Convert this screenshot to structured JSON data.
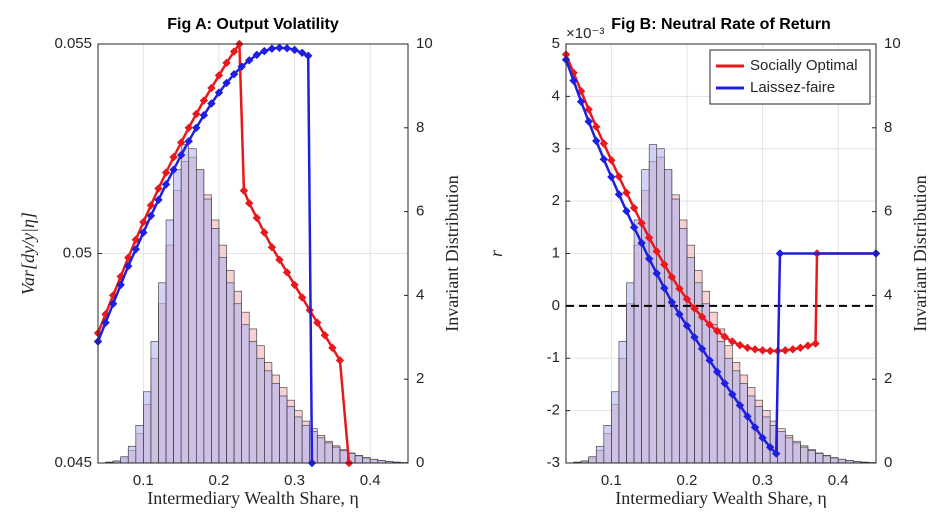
{
  "chart_data": [
    {
      "type": "line_histogram",
      "title": "Fig A: Output Volatility",
      "xlabel": "Intermediary Wealth Share, η",
      "ylabel": "Var[dy/y|η]",
      "y2label": "Invariant Distribution",
      "xlim": [
        0.04,
        0.45
      ],
      "xticks": [
        0.1,
        0.2,
        0.3,
        0.4
      ],
      "ylim": [
        0.045,
        0.055
      ],
      "yticks": [
        0.045,
        0.05,
        0.055
      ],
      "y2lim": [
        0,
        10
      ],
      "y2ticks": [
        0,
        2,
        4,
        6,
        8,
        10
      ],
      "grid": true,
      "histograms": [
        {
          "color": "#f0b4b4",
          "axis": "y2",
          "bins": [
            0.05,
            0.06,
            0.07,
            0.08,
            0.09,
            0.1,
            0.11,
            0.12,
            0.13,
            0.14,
            0.15,
            0.16,
            0.17,
            0.18,
            0.19,
            0.2,
            0.21,
            0.22,
            0.23,
            0.24,
            0.25,
            0.26,
            0.27,
            0.28,
            0.29,
            0.3,
            0.31,
            0.32,
            0.33,
            0.34,
            0.35,
            0.36,
            0.37,
            0.38,
            0.39,
            0.4,
            0.41,
            0.42,
            0.43,
            0.44,
            0.45
          ],
          "counts": [
            0.02,
            0.04,
            0.12,
            0.3,
            0.7,
            1.4,
            2.5,
            3.8,
            5.2,
            6.5,
            7.2,
            7.3,
            7.0,
            6.4,
            5.8,
            5.2,
            4.6,
            4.1,
            3.6,
            3.2,
            2.8,
            2.4,
            2.1,
            1.8,
            1.5,
            1.25,
            1.0,
            0.82,
            0.66,
            0.52,
            0.41,
            0.32,
            0.24,
            0.18,
            0.13,
            0.09,
            0.06,
            0.04,
            0.02,
            0.01
          ]
        },
        {
          "color": "#b4b4f0",
          "axis": "y2",
          "bins": [
            0.05,
            0.06,
            0.07,
            0.08,
            0.09,
            0.1,
            0.11,
            0.12,
            0.13,
            0.14,
            0.15,
            0.16,
            0.17,
            0.18,
            0.19,
            0.2,
            0.21,
            0.22,
            0.23,
            0.24,
            0.25,
            0.26,
            0.27,
            0.28,
            0.29,
            0.3,
            0.31,
            0.32,
            0.33,
            0.34,
            0.35,
            0.36,
            0.37,
            0.38,
            0.39,
            0.4,
            0.41,
            0.42,
            0.43,
            0.44,
            0.45
          ],
          "counts": [
            0.02,
            0.05,
            0.15,
            0.4,
            0.9,
            1.7,
            2.9,
            4.3,
            5.8,
            7.0,
            7.6,
            7.5,
            7.0,
            6.3,
            5.6,
            4.9,
            4.3,
            3.8,
            3.3,
            2.9,
            2.5,
            2.2,
            1.9,
            1.6,
            1.35,
            1.1,
            0.9,
            0.75,
            0.6,
            0.48,
            0.38,
            0.3,
            0.23,
            0.17,
            0.12,
            0.09,
            0.06,
            0.04,
            0.02,
            0.01
          ]
        }
      ],
      "series": [
        {
          "color": "#e8191c",
          "x": [
            0.04,
            0.05,
            0.06,
            0.07,
            0.08,
            0.09,
            0.1,
            0.11,
            0.12,
            0.13,
            0.14,
            0.15,
            0.16,
            0.17,
            0.18,
            0.19,
            0.2,
            0.21,
            0.22,
            0.227,
            0.233,
            0.24,
            0.25,
            0.26,
            0.27,
            0.28,
            0.29,
            0.3,
            0.31,
            0.32,
            0.33,
            0.34,
            0.35,
            0.36,
            0.372
          ],
          "values": [
            0.0481,
            0.04855,
            0.049,
            0.04945,
            0.0499,
            0.05033,
            0.05075,
            0.05115,
            0.05155,
            0.05193,
            0.0523,
            0.05265,
            0.053,
            0.05333,
            0.05365,
            0.05395,
            0.05425,
            0.05455,
            0.05482,
            0.055,
            0.0515,
            0.0512,
            0.05085,
            0.0505,
            0.05015,
            0.04985,
            0.04955,
            0.04925,
            0.04895,
            0.04865,
            0.04835,
            0.04805,
            0.04775,
            0.04745,
            0.045
          ]
        },
        {
          "color": "#1f1fe0",
          "x": [
            0.04,
            0.05,
            0.06,
            0.07,
            0.08,
            0.09,
            0.1,
            0.11,
            0.12,
            0.13,
            0.14,
            0.15,
            0.16,
            0.17,
            0.18,
            0.19,
            0.2,
            0.21,
            0.22,
            0.23,
            0.24,
            0.25,
            0.26,
            0.27,
            0.28,
            0.29,
            0.3,
            0.31,
            0.318,
            0.323
          ],
          "values": [
            0.0479,
            0.04835,
            0.0488,
            0.04925,
            0.0497,
            0.0501,
            0.0505,
            0.0509,
            0.05128,
            0.05165,
            0.052,
            0.05235,
            0.05268,
            0.053,
            0.0533,
            0.05358,
            0.05384,
            0.05407,
            0.05428,
            0.05446,
            0.05461,
            0.05474,
            0.05483,
            0.05489,
            0.05491,
            0.0549,
            0.05486,
            0.05479,
            0.05472,
            0.045
          ]
        }
      ]
    },
    {
      "type": "line_histogram",
      "title": "Fig B: Neutral Rate of Return",
      "exponent_label": "×10⁻³",
      "xlabel": "Intermediary Wealth Share, η",
      "ylabel": "r",
      "y2label": "Invariant Distribution",
      "xlim": [
        0.04,
        0.45
      ],
      "xticks": [
        0.1,
        0.2,
        0.3,
        0.4
      ],
      "ylim": [
        -3,
        5
      ],
      "yticks": [
        -3,
        -2,
        -1,
        0,
        1,
        2,
        3,
        4,
        5
      ],
      "y2lim": [
        0,
        10
      ],
      "y2ticks": [
        0,
        2,
        4,
        6,
        8,
        10
      ],
      "grid": true,
      "hline": 0,
      "legend": "upper right",
      "histograms": [
        {
          "color": "#f0b4b4",
          "axis": "y2",
          "bins": [
            0.05,
            0.06,
            0.07,
            0.08,
            0.09,
            0.1,
            0.11,
            0.12,
            0.13,
            0.14,
            0.15,
            0.16,
            0.17,
            0.18,
            0.19,
            0.2,
            0.21,
            0.22,
            0.23,
            0.24,
            0.25,
            0.26,
            0.27,
            0.28,
            0.29,
            0.3,
            0.31,
            0.32,
            0.33,
            0.34,
            0.35,
            0.36,
            0.37,
            0.38,
            0.39,
            0.4,
            0.41,
            0.42,
            0.43,
            0.44,
            0.45
          ],
          "counts": [
            0.02,
            0.04,
            0.12,
            0.3,
            0.7,
            1.4,
            2.5,
            3.8,
            5.2,
            6.5,
            7.2,
            7.3,
            7.0,
            6.4,
            5.8,
            5.2,
            4.6,
            4.1,
            3.6,
            3.2,
            2.8,
            2.4,
            2.1,
            1.8,
            1.5,
            1.25,
            1.0,
            0.82,
            0.66,
            0.52,
            0.41,
            0.32,
            0.24,
            0.18,
            0.13,
            0.09,
            0.06,
            0.04,
            0.02,
            0.01
          ]
        },
        {
          "color": "#b4b4f0",
          "axis": "y2",
          "bins": [
            0.05,
            0.06,
            0.07,
            0.08,
            0.09,
            0.1,
            0.11,
            0.12,
            0.13,
            0.14,
            0.15,
            0.16,
            0.17,
            0.18,
            0.19,
            0.2,
            0.21,
            0.22,
            0.23,
            0.24,
            0.25,
            0.26,
            0.27,
            0.28,
            0.29,
            0.3,
            0.31,
            0.32,
            0.33,
            0.34,
            0.35,
            0.36,
            0.37,
            0.38,
            0.39,
            0.4,
            0.41,
            0.42,
            0.43,
            0.44,
            0.45
          ],
          "counts": [
            0.02,
            0.05,
            0.15,
            0.4,
            0.9,
            1.7,
            2.9,
            4.3,
            5.8,
            7.0,
            7.6,
            7.5,
            7.0,
            6.3,
            5.6,
            4.9,
            4.3,
            3.8,
            3.3,
            2.9,
            2.5,
            2.2,
            1.9,
            1.6,
            1.35,
            1.1,
            0.9,
            0.75,
            0.6,
            0.48,
            0.38,
            0.3,
            0.23,
            0.17,
            0.12,
            0.09,
            0.06,
            0.04,
            0.02,
            0.01
          ]
        }
      ],
      "series": [
        {
          "name": "Socially Optimal",
          "color": "#e8191c",
          "x": [
            0.04,
            0.05,
            0.06,
            0.07,
            0.08,
            0.09,
            0.1,
            0.11,
            0.12,
            0.13,
            0.14,
            0.15,
            0.16,
            0.17,
            0.18,
            0.19,
            0.2,
            0.21,
            0.22,
            0.23,
            0.24,
            0.25,
            0.26,
            0.27,
            0.28,
            0.29,
            0.3,
            0.31,
            0.32,
            0.33,
            0.34,
            0.35,
            0.36,
            0.37,
            0.372,
            0.45
          ],
          "values": [
            4.8,
            4.45,
            4.1,
            3.75,
            3.42,
            3.1,
            2.78,
            2.47,
            2.16,
            1.87,
            1.58,
            1.3,
            1.04,
            0.79,
            0.55,
            0.33,
            0.13,
            -0.05,
            -0.21,
            -0.36,
            -0.48,
            -0.59,
            -0.68,
            -0.75,
            -0.8,
            -0.83,
            -0.85,
            -0.86,
            -0.86,
            -0.85,
            -0.83,
            -0.8,
            -0.76,
            -0.72,
            1,
            1
          ]
        },
        {
          "name": "Laissez-faire",
          "color": "#1f1fe0",
          "x": [
            0.04,
            0.05,
            0.06,
            0.07,
            0.08,
            0.09,
            0.1,
            0.11,
            0.12,
            0.13,
            0.14,
            0.15,
            0.16,
            0.17,
            0.18,
            0.19,
            0.2,
            0.21,
            0.22,
            0.23,
            0.24,
            0.25,
            0.26,
            0.27,
            0.28,
            0.29,
            0.3,
            0.31,
            0.318,
            0.323,
            0.45
          ],
          "values": [
            4.7,
            4.3,
            3.9,
            3.52,
            3.15,
            2.8,
            2.46,
            2.13,
            1.81,
            1.5,
            1.2,
            0.9,
            0.62,
            0.34,
            0.07,
            -0.16,
            -0.38,
            -0.6,
            -0.82,
            -1.04,
            -1.26,
            -1.48,
            -1.69,
            -1.9,
            -2.11,
            -2.32,
            -2.52,
            -2.7,
            -2.82,
            1,
            1
          ]
        }
      ]
    }
  ]
}
